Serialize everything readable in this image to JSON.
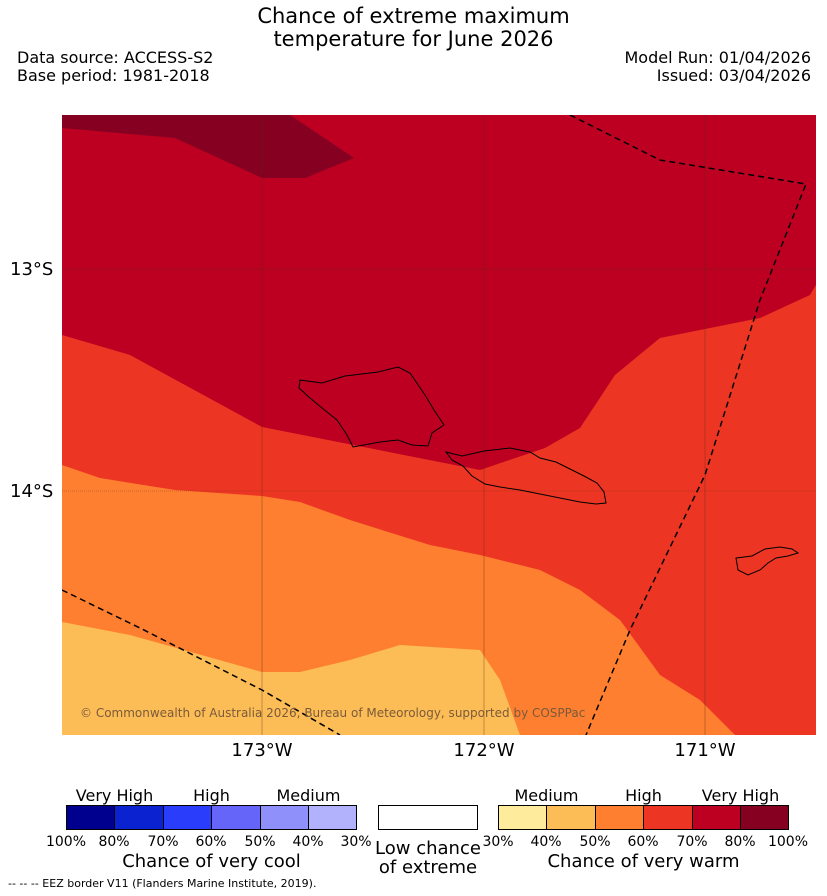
{
  "header": {
    "title_line1": "Chance of extreme maximum",
    "title_line2": "temperature for June 2026",
    "data_source": "Data source: ACCESS-S2",
    "base_period": "Base period: 1981-2018",
    "model_run": "Model Run: 01/04/2026",
    "issued": "Issued: 03/04/2026"
  },
  "map": {
    "lat_labels": [
      "13°S",
      "14°S"
    ],
    "lon_labels": [
      "173°W",
      "172°W",
      "171°W"
    ],
    "copyright": "© Commonwealth of Australia 2026, Bureau of Meteorology, supported by COSPPac",
    "colors": {
      "very_high_warm_dark": "#850021",
      "very_high_warm": "#bd0021",
      "high_warm": "#ec3623",
      "medium_high_warm": "#fd7f2f",
      "medium_warm": "#fdbd56",
      "low_medium_warm": "#feeb9c"
    }
  },
  "legend": {
    "cool": {
      "headings": [
        "Very High",
        "High",
        "Medium"
      ],
      "ticks": [
        "100%",
        "80%",
        "70%",
        "60%",
        "50%",
        "40%",
        "30%"
      ],
      "title": "Chance of very cool",
      "colors": [
        "#00008e",
        "#0a22cf",
        "#2a3dfb",
        "#6565fa",
        "#9090fb",
        "#b1b1fc"
      ]
    },
    "neutral": {
      "title_line1": "Low chance",
      "title_line2": "of extreme"
    },
    "warm": {
      "headings": [
        "Medium",
        "High",
        "Very High"
      ],
      "ticks": [
        "30%",
        "40%",
        "50%",
        "60%",
        "70%",
        "80%",
        "100%"
      ],
      "title": "Chance of very warm",
      "colors": [
        "#feeb9c",
        "#fdbd56",
        "#fd7f2f",
        "#ec3623",
        "#bd0021",
        "#850021"
      ]
    }
  },
  "footnote": "--  --  -- EEZ border V11 (Flanders Marine Institute, 2019)."
}
